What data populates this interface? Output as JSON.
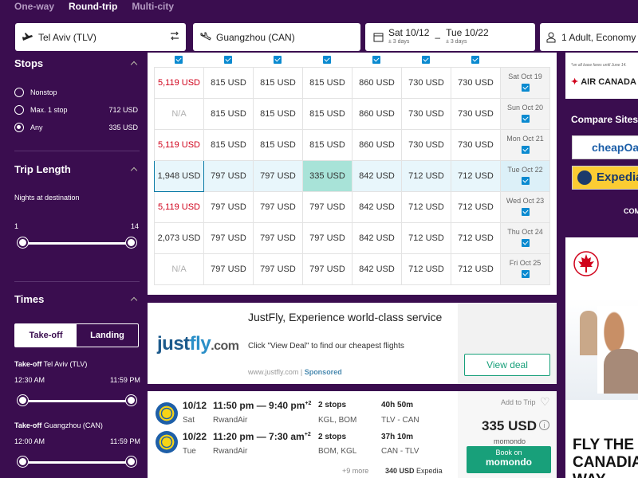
{
  "trip_types": {
    "one_way": "One-way",
    "round_trip": "Round-trip",
    "multi_city": "Multi-city"
  },
  "search": {
    "origin": "Tel Aviv (TLV)",
    "destination": "Guangzhou (CAN)",
    "depart_date": "Sat 10/12",
    "depart_flex": "± 3 days",
    "return_separator": "–",
    "return_date": "Tue 10/22",
    "return_flex": "± 3 days",
    "travelers": "1 Adult, Economy"
  },
  "filters": {
    "stops": {
      "title": "Stops",
      "options": [
        {
          "label": "Nonstop",
          "price": "",
          "selected": false
        },
        {
          "label": "Max. 1 stop",
          "price": "712 USD",
          "selected": false
        },
        {
          "label": "Any",
          "price": "335 USD",
          "selected": true
        }
      ]
    },
    "trip_length": {
      "title": "Trip Length",
      "subtitle": "Nights at destination",
      "min": "1",
      "max": "14",
      "range": [
        0,
        1
      ]
    },
    "times": {
      "title": "Times",
      "tabs": {
        "takeoff": "Take-off",
        "landing": "Landing"
      },
      "takeoff_origin_label": "Take-off",
      "takeoff_origin_city": " Tel Aviv (TLV)",
      "takeoff_origin_from": "12:30 AM",
      "takeoff_origin_to": "11:59 PM",
      "takeoff_origin_range": [
        0,
        1
      ],
      "takeoff_dest_label": "Take-off",
      "takeoff_dest_city": " Guangzhou (CAN)",
      "takeoff_dest_from": "12:00 AM",
      "takeoff_dest_to": "11:59 PM",
      "takeoff_dest_range": [
        0,
        1
      ]
    }
  },
  "price_grid": {
    "rows": [
      {
        "date": "Sat Oct 19",
        "cells": [
          "5,119 USD",
          "815 USD",
          "815 USD",
          "815 USD",
          "860 USD",
          "730 USD",
          "730 USD"
        ],
        "first_style": "red"
      },
      {
        "date": "Sun Oct 20",
        "cells": [
          "N/A",
          "815 USD",
          "815 USD",
          "815 USD",
          "860 USD",
          "730 USD",
          "730 USD"
        ],
        "first_style": "na"
      },
      {
        "date": "Mon Oct 21",
        "cells": [
          "5,119 USD",
          "815 USD",
          "815 USD",
          "815 USD",
          "860 USD",
          "730 USD",
          "730 USD"
        ],
        "first_style": "red"
      },
      {
        "date": "Tue Oct 22",
        "cells": [
          "1,948 USD",
          "797 USD",
          "797 USD",
          "335 USD",
          "842 USD",
          "712 USD",
          "712 USD"
        ],
        "first_style": "sel"
      },
      {
        "date": "Wed Oct 23",
        "cells": [
          "5,119 USD",
          "797 USD",
          "797 USD",
          "797 USD",
          "842 USD",
          "712 USD",
          "712 USD"
        ],
        "first_style": "red"
      },
      {
        "date": "Thu Oct 24",
        "cells": [
          "2,073 USD",
          "797 USD",
          "797 USD",
          "797 USD",
          "842 USD",
          "712 USD",
          "712 USD"
        ],
        "first_style": ""
      },
      {
        "date": "Fri Oct 25",
        "cells": [
          "N/A",
          "797 USD",
          "797 USD",
          "797 USD",
          "842 USD",
          "712 USD",
          "712 USD"
        ],
        "first_style": "na"
      }
    ]
  },
  "ad": {
    "logo_just": "just",
    "logo_fly": "fly",
    "logo_com": ".com",
    "headline": "JustFly, Experience world-class service",
    "description": "Click \"View Deal\" to find our cheapest flights",
    "url": "www.justfly.com",
    "sponsored": "Sponsored",
    "cta": "View deal"
  },
  "result": {
    "outbound": {
      "date": "10/12",
      "dow": "Sat",
      "time": "11:50 pm — 9:40 pm",
      "plus": "+2",
      "airline": "RwandAir",
      "stops": "2 stops",
      "via": "KGL, BOM",
      "duration": "40h 50m",
      "route": "TLV - CAN"
    },
    "return": {
      "date": "10/22",
      "dow": "Tue",
      "time": "11:20 pm — 7:30 am",
      "plus": "+2",
      "airline": "RwandAir",
      "stops": "2 stops",
      "via": "BOM, KGL",
      "duration": "37h 10m",
      "route": "CAN - TLV"
    },
    "more": "+9 more",
    "alt_price": "340 USD",
    "alt_provider": "Expedia",
    "add_to_trip": "Add to Trip",
    "price": "335 USD",
    "provider": "momondo",
    "book_line1": "Book on",
    "book_line2": "momondo"
  },
  "right_ads": {
    "note": "*on all base fares until June 14.",
    "airline": "AIR CANADA",
    "compare_title": "Compare Sites vs",
    "site1": "cheapOair",
    "site2": "Expedia",
    "compare_cta": "COM",
    "slogan1": "FLY THE",
    "slogan2": "CANADIAN",
    "slogan3": "WAY"
  },
  "colors": {
    "brand_purple": "#3a0d4f",
    "accent_green": "#18a07a",
    "best_cell": "#a8e3d8",
    "red_price": "#d0021b",
    "checkbox_blue": "#0a8ad0"
  }
}
